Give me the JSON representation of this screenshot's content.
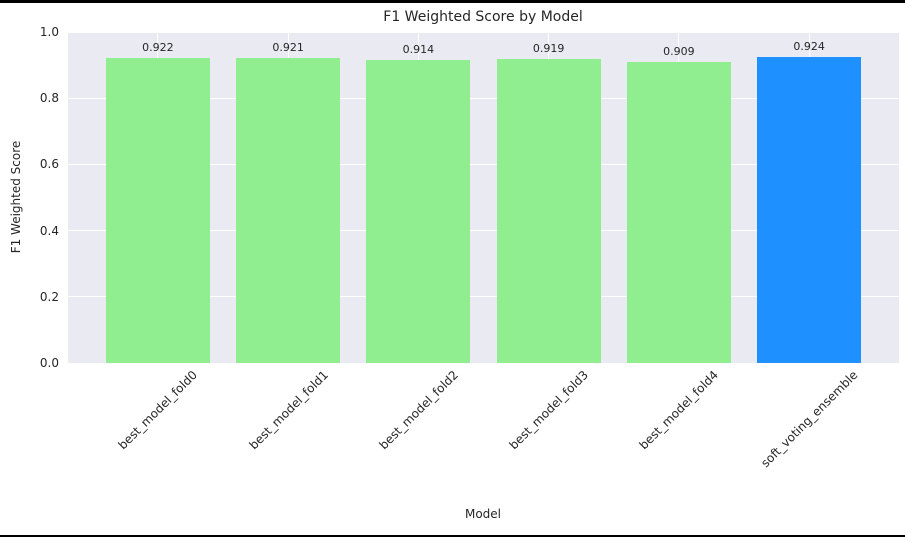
{
  "window": {
    "top_border_color": "#000000",
    "bottom_border_color": "#000000",
    "figure_bg": "#FFFFFF"
  },
  "chart_data": {
    "type": "bar",
    "title": "F1 Weighted Score by Model",
    "xlabel": "Model",
    "ylabel": "F1 Weighted Score",
    "categories": [
      "best_model_fold0",
      "best_model_fold1",
      "best_model_fold2",
      "best_model_fold3",
      "best_model_fold4",
      "soft_voting_ensemble"
    ],
    "values": [
      0.922,
      0.921,
      0.914,
      0.919,
      0.909,
      0.924
    ],
    "bar_value_labels": [
      "0.922",
      "0.921",
      "0.914",
      "0.919",
      "0.909",
      "0.924"
    ],
    "bar_colors": [
      "#90EE90",
      "#90EE90",
      "#90EE90",
      "#90EE90",
      "#90EE90",
      "#1E90FF"
    ],
    "ylim": [
      0.0,
      1.0
    ],
    "ytick_labels": [
      "0.0",
      "0.2",
      "0.4",
      "0.6",
      "0.8",
      "1.0"
    ],
    "yticks": [
      0.0,
      0.2,
      0.4,
      0.6,
      0.8,
      1.0
    ],
    "xlim_slots": [
      -0.69,
      5.69
    ],
    "bar_slot_width": 0.8,
    "grid": true,
    "legend": "none",
    "colors": {
      "plot_bg": "#EAEAF2",
      "grid": "#FFFFFF",
      "text": "#262626"
    }
  }
}
